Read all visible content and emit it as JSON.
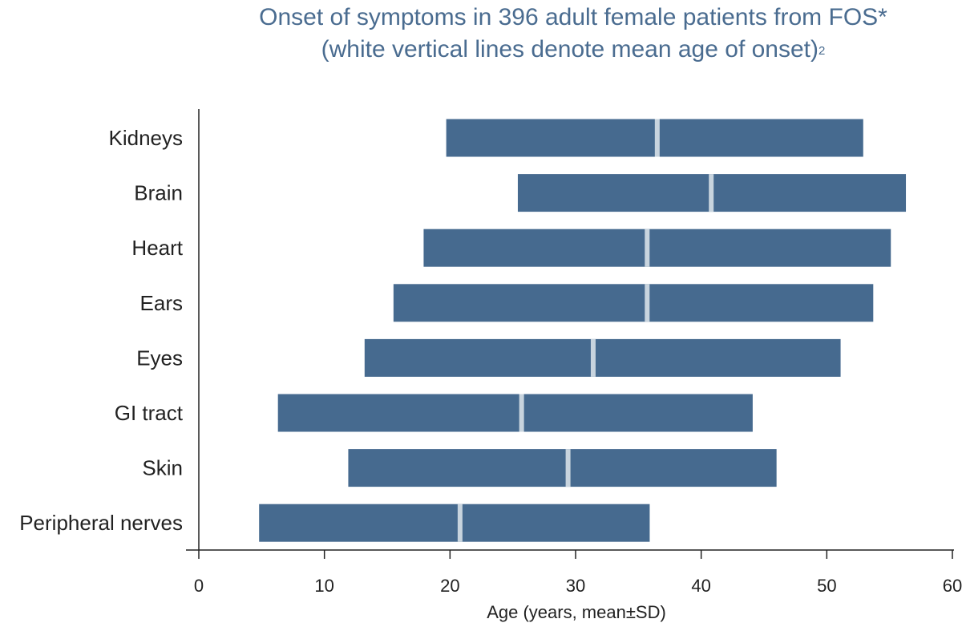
{
  "chart_data": {
    "type": "bar",
    "title_line1": "Onset of symptoms in 396 adult female patients from FOS*",
    "title_line2": "(white vertical lines denote mean age of onset)",
    "title_sup": "2",
    "xlabel": "Age (years, mean±SD)",
    "ylabel": "",
    "xlim": [
      0,
      60
    ],
    "xticks": [
      0,
      10,
      20,
      30,
      40,
      50,
      60
    ],
    "categories": [
      "Kidneys",
      "Brain",
      "Heart",
      "Ears",
      "Eyes",
      "GI tract",
      "Skin",
      "Peripheral nerves"
    ],
    "series": [
      {
        "name": "mean",
        "values": [
          36.5,
          40.8,
          35.7,
          35.7,
          31.4,
          25.7,
          29.4,
          20.8
        ]
      },
      {
        "name": "mean-SD",
        "values": [
          19.7,
          25.4,
          17.9,
          15.5,
          13.2,
          6.3,
          11.9,
          4.8
        ]
      },
      {
        "name": "mean+SD",
        "values": [
          52.9,
          56.3,
          55.1,
          53.7,
          51.1,
          44.1,
          46.0,
          35.9
        ]
      }
    ],
    "bar_color": "#466a8f",
    "mean_line_color": "#c8d4de"
  }
}
